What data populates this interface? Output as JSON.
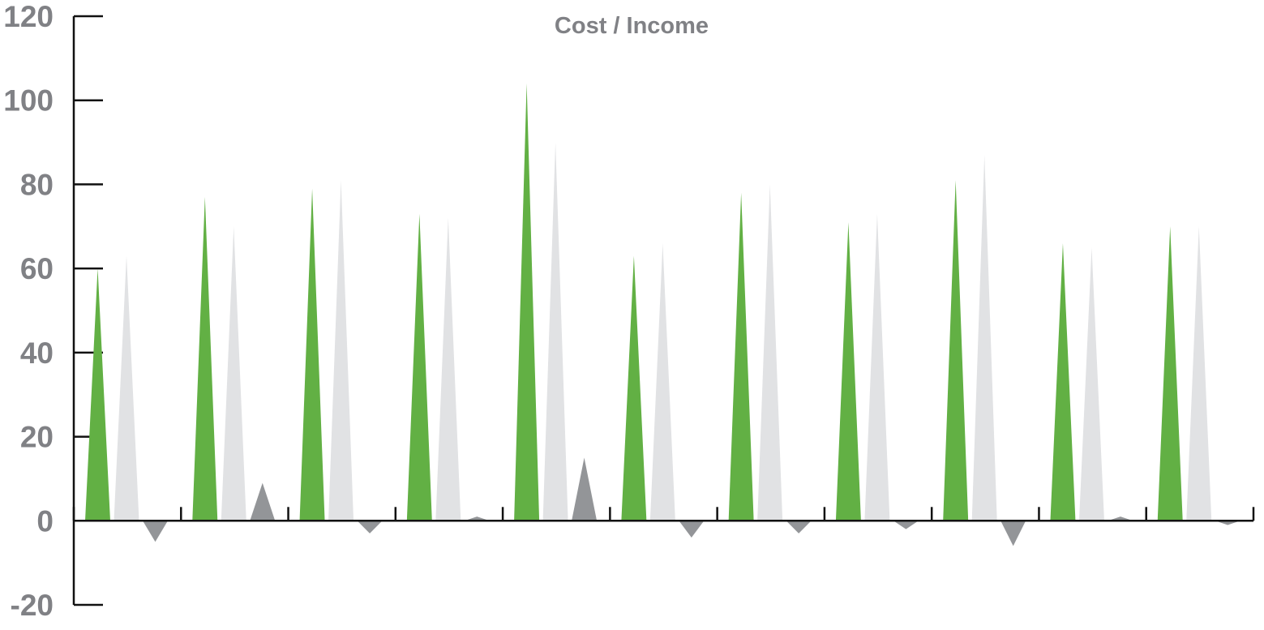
{
  "chart_data": {
    "type": "bar",
    "title": "Cost / Income",
    "xlabel": "",
    "ylabel": "",
    "ylim": [
      -20,
      120
    ],
    "yticks": [
      "120",
      "100",
      "80",
      "60",
      "40",
      "20",
      "0",
      "-20"
    ],
    "categories": [
      "",
      "",
      "",
      "",
      "",
      "",
      "",
      "",
      "",
      "",
      ""
    ],
    "series": [
      {
        "color": "#62b044",
        "values": [
          60,
          77,
          79,
          73,
          104,
          63,
          78,
          71,
          81,
          66,
          70
        ]
      },
      {
        "color": "#e1e2e4",
        "values": [
          63,
          70,
          81,
          72,
          90,
          66,
          80,
          73,
          87,
          65,
          70
        ]
      },
      {
        "color": "#939598",
        "values": [
          -5,
          9,
          -3,
          1,
          15,
          -4,
          -3,
          -2,
          -6,
          1,
          -1
        ]
      }
    ],
    "grid": false,
    "legend": "none"
  }
}
